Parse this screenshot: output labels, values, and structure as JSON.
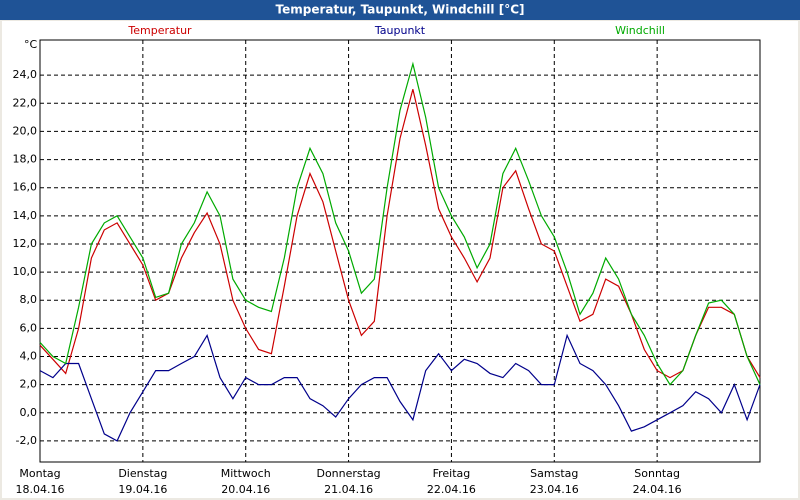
{
  "chart_data": {
    "type": "line",
    "title": "Temperatur, Taupunkt, Windchill [°C]",
    "y_label": "°C",
    "categories": [
      [
        "Montag",
        "18.04.16"
      ],
      null,
      null,
      null,
      null,
      null,
      null,
      null,
      [
        "Dienstag",
        "19.04.16"
      ],
      null,
      null,
      null,
      null,
      null,
      null,
      null,
      [
        "Mittwoch",
        "20.04.16"
      ],
      null,
      null,
      null,
      null,
      null,
      null,
      null,
      [
        "Donnerstag",
        "21.04.16"
      ],
      null,
      null,
      null,
      null,
      null,
      null,
      null,
      [
        "Freitag",
        "22.04.16"
      ],
      null,
      null,
      null,
      null,
      null,
      null,
      null,
      [
        "Samstag",
        "23.04.16"
      ],
      null,
      null,
      null,
      null,
      null,
      null,
      null,
      [
        "Sonntag",
        "24.04.16"
      ],
      null,
      null,
      null,
      null,
      null,
      null,
      null,
      null
    ],
    "series": [
      {
        "name": "Temperatur",
        "color": "#cc0000",
        "values": [
          4.8,
          3.8,
          2.8,
          6,
          11,
          13,
          13.5,
          12,
          10.5,
          8,
          8.5,
          11,
          12.8,
          14.2,
          12,
          8,
          6,
          4.5,
          4.2,
          9,
          14,
          17,
          15,
          11.5,
          8,
          5.5,
          6.5,
          14,
          19.5,
          23,
          19,
          14.5,
          12.5,
          11,
          9.3,
          11,
          16,
          17.2,
          14.5,
          12,
          11.5,
          9,
          6.5,
          7,
          9.5,
          9,
          7,
          4.5,
          3,
          2.5,
          3,
          5.5,
          7.5,
          7.5,
          7,
          4,
          2.5
        ]
      },
      {
        "name": "Taupunkt",
        "color": "#00008b",
        "values": [
          3,
          2.5,
          3.5,
          3.5,
          1,
          -1.5,
          -2,
          0,
          1.5,
          3,
          3,
          3.5,
          4,
          5.5,
          2.5,
          1,
          2.5,
          2,
          2,
          2.5,
          2.5,
          1,
          0.5,
          -0.3,
          1,
          2,
          2.5,
          2.5,
          0.8,
          -0.5,
          3,
          4.2,
          3,
          3.8,
          3.5,
          2.8,
          2.5,
          3.5,
          3,
          2,
          2,
          5.5,
          3.5,
          3,
          2,
          0.5,
          -1.3,
          -1,
          -0.5,
          0,
          0.5,
          1.5,
          1,
          0,
          2,
          -0.5,
          2
        ]
      },
      {
        "name": "Windchill",
        "color": "#00aa00",
        "values": [
          5,
          4,
          3.5,
          7.5,
          12,
          13.5,
          14,
          12.5,
          11,
          8.2,
          8.5,
          12,
          13.5,
          15.7,
          14,
          9.5,
          8,
          7.5,
          7.2,
          11,
          16,
          18.8,
          17,
          13.5,
          11.5,
          8.5,
          9.5,
          16,
          21.5,
          24.8,
          21,
          16,
          14,
          12.5,
          10.3,
          12,
          17,
          18.8,
          16.5,
          14,
          12.5,
          10,
          7,
          8.5,
          11,
          9.5,
          7,
          5.5,
          3.5,
          2,
          3,
          5.5,
          7.8,
          8,
          7,
          4,
          2
        ]
      }
    ],
    "ylim": [
      -3.5,
      26.5
    ],
    "yticks": [
      {
        "value": -2,
        "label": "-2,0"
      },
      {
        "value": 0,
        "label": "0,0"
      },
      {
        "value": 2,
        "label": "2,0"
      },
      {
        "value": 4,
        "label": "4,0"
      },
      {
        "value": 6,
        "label": "6,0"
      },
      {
        "value": 8,
        "label": "8,0"
      },
      {
        "value": 10,
        "label": "10,0"
      },
      {
        "value": 12,
        "label": "12,0"
      },
      {
        "value": 14,
        "label": "14,0"
      },
      {
        "value": 16,
        "label": "16,0"
      },
      {
        "value": 18,
        "label": "18,0"
      },
      {
        "value": 20,
        "label": "20,0"
      },
      {
        "value": 22,
        "label": "22,0"
      },
      {
        "value": 24,
        "label": "24,0"
      }
    ],
    "grid": true
  }
}
